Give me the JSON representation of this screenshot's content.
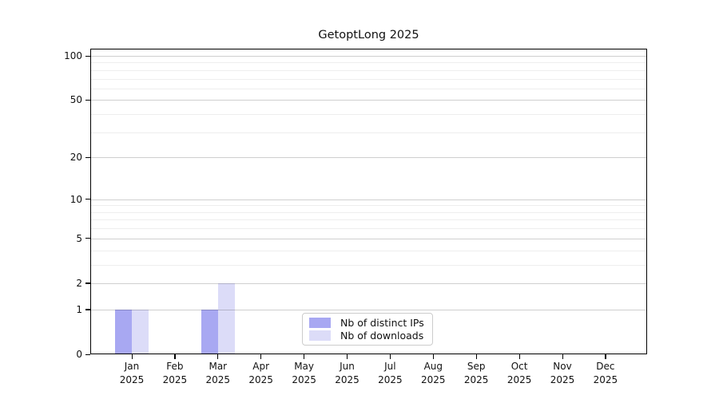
{
  "chart_data": {
    "type": "bar",
    "title": "GetoptLong 2025",
    "categories": [
      "Jan",
      "Feb",
      "Mar",
      "Apr",
      "May",
      "Jun",
      "Jul",
      "Aug",
      "Sep",
      "Oct",
      "Nov",
      "Dec"
    ],
    "category_year": "2025",
    "series": [
      {
        "name": "Nb of distinct IPs",
        "color": "#a8a8f2",
        "values": [
          1,
          0,
          1,
          0,
          0,
          0,
          0,
          0,
          0,
          0,
          0,
          0
        ]
      },
      {
        "name": "Nb of downloads",
        "color": "#dcdcf8",
        "values": [
          1,
          0,
          2,
          0,
          0,
          0,
          0,
          0,
          0,
          0,
          0,
          0
        ]
      }
    ],
    "xlabel": "",
    "ylabel": "",
    "yscale": "log1p",
    "ylim": [
      0,
      110
    ],
    "yticks_major": [
      0,
      1,
      2,
      5,
      10,
      20,
      50,
      100
    ],
    "yticks_minor": [
      3,
      4,
      6,
      7,
      8,
      9,
      30,
      40,
      60,
      70,
      80,
      90
    ],
    "grid": "horizontal",
    "legend_position": "inside-bottom-center"
  }
}
